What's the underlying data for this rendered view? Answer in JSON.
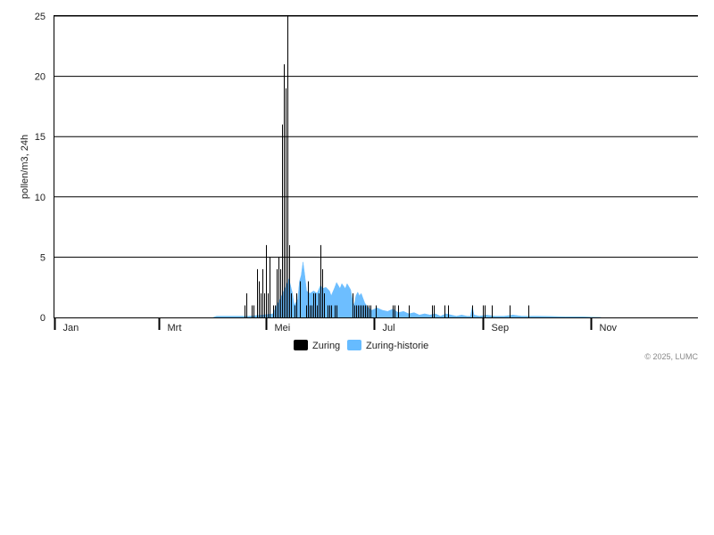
{
  "chart_data": {
    "type": "bar",
    "ylabel": "pollen/m3, 24h",
    "ylim": [
      0,
      25
    ],
    "yticks": [
      0,
      5,
      10,
      15,
      20,
      25
    ],
    "xlim": [
      "2025-01-01",
      "2025-12-31"
    ],
    "xticks": [
      {
        "date": "2025-01-01",
        "label": "Jan"
      },
      {
        "date": "2025-03-01",
        "label": "Mrt"
      },
      {
        "date": "2025-05-01",
        "label": "Mei"
      },
      {
        "date": "2025-07-01",
        "label": "Jul"
      },
      {
        "date": "2025-09-01",
        "label": "Sep"
      },
      {
        "date": "2025-11-01",
        "label": "Nov"
      }
    ],
    "grid": "horizontal",
    "legend_position": "bottom-center",
    "series": [
      {
        "name": "Zuring",
        "kind": "bar",
        "color": "#000000",
        "points": [
          [
            "2025-04-19",
            1
          ],
          [
            "2025-04-20",
            2
          ],
          [
            "2025-04-23",
            1
          ],
          [
            "2025-04-24",
            1
          ],
          [
            "2025-04-26",
            4
          ],
          [
            "2025-04-27",
            3
          ],
          [
            "2025-04-28",
            2
          ],
          [
            "2025-04-29",
            4
          ],
          [
            "2025-04-30",
            2
          ],
          [
            "2025-05-01",
            6
          ],
          [
            "2025-05-02",
            2
          ],
          [
            "2025-05-03",
            5
          ],
          [
            "2025-05-05",
            1
          ],
          [
            "2025-05-06",
            1
          ],
          [
            "2025-05-07",
            4
          ],
          [
            "2025-05-08",
            5
          ],
          [
            "2025-05-09",
            4
          ],
          [
            "2025-05-10",
            16
          ],
          [
            "2025-05-11",
            21
          ],
          [
            "2025-05-12",
            19
          ],
          [
            "2025-05-13",
            25
          ],
          [
            "2025-05-14",
            6
          ],
          [
            "2025-05-15",
            2
          ],
          [
            "2025-05-17",
            1
          ],
          [
            "2025-05-18",
            2
          ],
          [
            "2025-05-20",
            3
          ],
          [
            "2025-05-24",
            1
          ],
          [
            "2025-05-25",
            3
          ],
          [
            "2025-05-26",
            1
          ],
          [
            "2025-05-27",
            1
          ],
          [
            "2025-05-28",
            2
          ],
          [
            "2025-05-29",
            2
          ],
          [
            "2025-05-30",
            1
          ],
          [
            "2025-05-31",
            2
          ],
          [
            "2025-06-01",
            6
          ],
          [
            "2025-06-02",
            4
          ],
          [
            "2025-06-03",
            2
          ],
          [
            "2025-06-05",
            1
          ],
          [
            "2025-06-06",
            1
          ],
          [
            "2025-06-07",
            1
          ],
          [
            "2025-06-09",
            1
          ],
          [
            "2025-06-10",
            1
          ],
          [
            "2025-06-19",
            2
          ],
          [
            "2025-06-20",
            1
          ],
          [
            "2025-06-21",
            1
          ],
          [
            "2025-06-22",
            1
          ],
          [
            "2025-06-23",
            1
          ],
          [
            "2025-06-24",
            1
          ],
          [
            "2025-06-25",
            1
          ],
          [
            "2025-06-26",
            1
          ],
          [
            "2025-06-27",
            1
          ],
          [
            "2025-06-28",
            1
          ],
          [
            "2025-06-29",
            1
          ],
          [
            "2025-07-02",
            1
          ],
          [
            "2025-07-12",
            1
          ],
          [
            "2025-07-13",
            1
          ],
          [
            "2025-07-15",
            1
          ],
          [
            "2025-07-21",
            1
          ],
          [
            "2025-08-03",
            1
          ],
          [
            "2025-08-04",
            1
          ],
          [
            "2025-08-10",
            1
          ],
          [
            "2025-08-12",
            1
          ],
          [
            "2025-08-26",
            1
          ],
          [
            "2025-09-01",
            1
          ],
          [
            "2025-09-02",
            1
          ],
          [
            "2025-09-06",
            1
          ],
          [
            "2025-09-16",
            1
          ],
          [
            "2025-09-27",
            1
          ]
        ]
      },
      {
        "name": "Zuring-historie",
        "kind": "area",
        "color": "#66bbff",
        "points": [
          [
            "2025-04-01",
            0
          ],
          [
            "2025-04-03",
            0.1
          ],
          [
            "2025-04-11",
            0.1
          ],
          [
            "2025-04-21",
            0.1
          ],
          [
            "2025-04-29",
            0.2
          ],
          [
            "2025-05-05",
            0.3
          ],
          [
            "2025-05-07",
            1
          ],
          [
            "2025-05-09",
            1.5
          ],
          [
            "2025-05-12",
            2.5
          ],
          [
            "2025-05-14",
            3.2
          ],
          [
            "2025-05-16",
            2
          ],
          [
            "2025-05-17",
            1
          ],
          [
            "2025-05-19",
            1.5
          ],
          [
            "2025-05-20",
            3
          ],
          [
            "2025-05-21",
            3.5
          ],
          [
            "2025-05-22",
            4.6
          ],
          [
            "2025-05-23",
            3.5
          ],
          [
            "2025-05-24",
            2.2
          ],
          [
            "2025-05-26",
            2
          ],
          [
            "2025-05-28",
            2.2
          ],
          [
            "2025-05-30",
            2
          ],
          [
            "2025-06-01",
            2.7
          ],
          [
            "2025-06-02",
            2.4
          ],
          [
            "2025-06-04",
            2.5
          ],
          [
            "2025-06-06",
            2.2
          ],
          [
            "2025-06-07",
            1.8
          ],
          [
            "2025-06-09",
            2.5
          ],
          [
            "2025-06-10",
            2.9
          ],
          [
            "2025-06-12",
            2.4
          ],
          [
            "2025-06-13",
            2.8
          ],
          [
            "2025-06-15",
            2.4
          ],
          [
            "2025-06-16",
            2.8
          ],
          [
            "2025-06-18",
            2.3
          ],
          [
            "2025-06-19",
            1.5
          ],
          [
            "2025-06-20",
            1
          ],
          [
            "2025-06-21",
            1.8
          ],
          [
            "2025-06-22",
            2.1
          ],
          [
            "2025-06-23",
            1.8
          ],
          [
            "2025-06-24",
            2
          ],
          [
            "2025-06-26",
            1.2
          ],
          [
            "2025-06-28",
            0.8
          ],
          [
            "2025-06-30",
            0.6
          ],
          [
            "2025-07-03",
            0.8
          ],
          [
            "2025-07-06",
            0.6
          ],
          [
            "2025-07-09",
            0.5
          ],
          [
            "2025-07-12",
            0.7
          ],
          [
            "2025-07-15",
            0.4
          ],
          [
            "2025-07-18",
            0.5
          ],
          [
            "2025-07-21",
            0.3
          ],
          [
            "2025-07-24",
            0.4
          ],
          [
            "2025-07-27",
            0.2
          ],
          [
            "2025-07-30",
            0.3
          ],
          [
            "2025-08-02",
            0.2
          ],
          [
            "2025-08-05",
            0.3
          ],
          [
            "2025-08-08",
            0.1
          ],
          [
            "2025-08-11",
            0.3
          ],
          [
            "2025-08-14",
            0.2
          ],
          [
            "2025-08-17",
            0.1
          ],
          [
            "2025-08-20",
            0.2
          ],
          [
            "2025-08-23",
            0.1
          ],
          [
            "2025-08-25",
            0.1
          ],
          [
            "2025-08-26",
            0.9
          ],
          [
            "2025-08-27",
            0.2
          ],
          [
            "2025-08-30",
            0.1
          ],
          [
            "2025-09-03",
            0.2
          ],
          [
            "2025-09-08",
            0.1
          ],
          [
            "2025-09-13",
            0.1
          ],
          [
            "2025-09-18",
            0.2
          ],
          [
            "2025-09-23",
            0.1
          ],
          [
            "2025-10-03",
            0.1
          ],
          [
            "2025-10-18",
            0.05
          ],
          [
            "2025-10-28",
            0.05
          ],
          [
            "2025-11-07",
            0
          ]
        ]
      }
    ]
  },
  "footer": {
    "copyright": "© 2025, LUMC"
  }
}
